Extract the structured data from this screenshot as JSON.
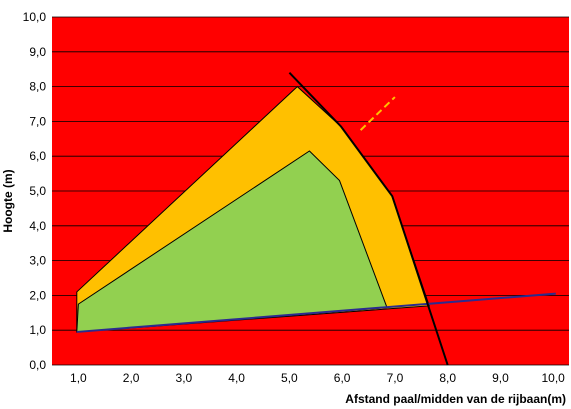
{
  "chart_data": {
    "type": "area",
    "xlabel": "Afstand paal/midden van de rijbaan(m)",
    "ylabel": "Hoogte (m)",
    "xlim": [
      0.5,
      10.3
    ],
    "ylim": [
      0,
      10
    ],
    "x_ticks": [
      "1,0",
      "2,0",
      "3,0",
      "4,0",
      "5,0",
      "6,0",
      "7,0",
      "8,0",
      "9,0",
      "10,0"
    ],
    "y_ticks": [
      "0,0",
      "1,0",
      "2,0",
      "3,0",
      "4,0",
      "5,0",
      "6,0",
      "7,0",
      "8,0",
      "9,0",
      "10,0"
    ],
    "grid": "horizontal",
    "background_color": "#ff0000",
    "series": [
      {
        "color": "#ffc000",
        "points": [
          [
            0.97,
            0.95
          ],
          [
            0.97,
            2.1
          ],
          [
            5.15,
            8.0
          ],
          [
            5.98,
            6.85
          ],
          [
            6.95,
            4.85
          ],
          [
            7.65,
            1.7
          ],
          [
            0.97,
            0.95
          ]
        ]
      },
      {
        "color": "#92d050",
        "points": [
          [
            0.97,
            0.95
          ],
          [
            1.0,
            1.75
          ],
          [
            5.38,
            6.15
          ],
          [
            5.95,
            5.3
          ],
          [
            6.85,
            1.65
          ],
          [
            0.97,
            0.95
          ]
        ]
      }
    ],
    "lines": [
      {
        "color": "#2b2b8f",
        "points": [
          [
            0.97,
            0.95
          ],
          [
            10.05,
            2.05
          ]
        ]
      },
      {
        "color": "#000000",
        "points": [
          [
            5.0,
            8.4
          ],
          [
            5.98,
            6.85
          ],
          [
            6.95,
            4.85
          ],
          [
            8.0,
            0.0
          ]
        ]
      },
      {
        "color": "#ffc000",
        "dashed": true,
        "points": [
          [
            6.35,
            6.75
          ],
          [
            7.0,
            7.7
          ]
        ]
      }
    ]
  }
}
